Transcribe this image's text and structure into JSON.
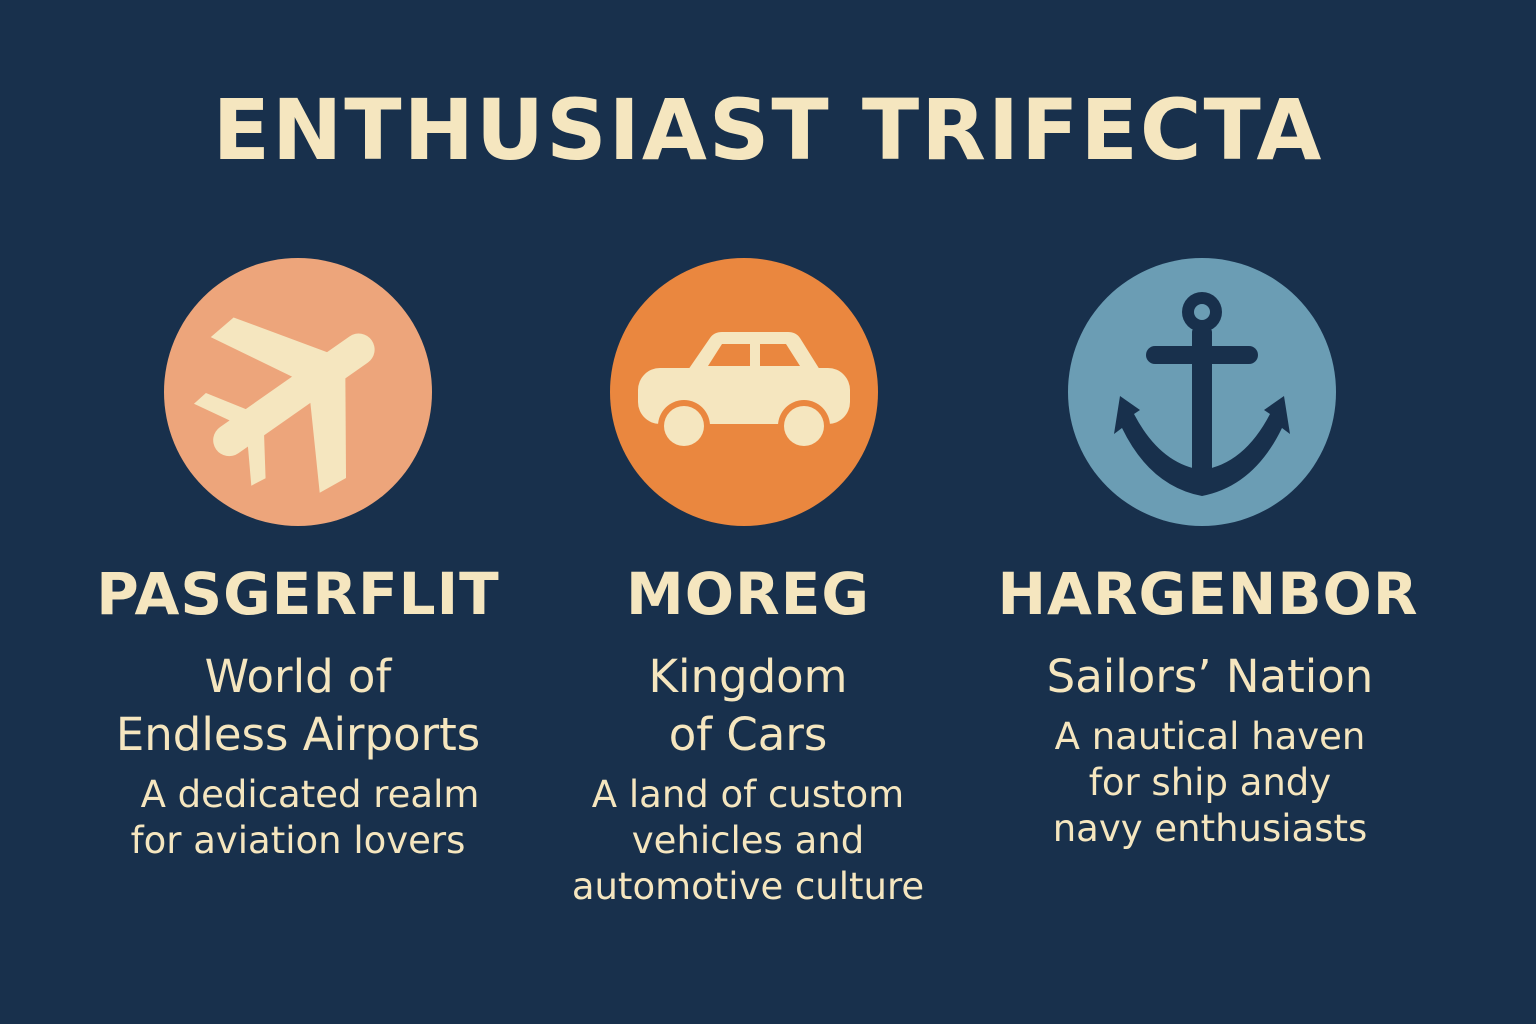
{
  "title": "ENTHUSIAST TRIFECTA",
  "colors": {
    "background": "#18304c",
    "text": "#f5e6bf",
    "icon_shape": "#f5e6bf",
    "anchor_shape": "#18304c"
  },
  "cards": [
    {
      "icon": "airplane-icon",
      "circle_color": "#eda57b",
      "name": "PASGERFLIT",
      "subtitle_lines": [
        "World of",
        "Endless Airports"
      ],
      "description_lines": [
        "A dedicated realm",
        "for aviation lovers"
      ]
    },
    {
      "icon": "car-icon",
      "circle_color": "#ea873f",
      "name": "MOREG",
      "subtitle_lines": [
        "Kingdom",
        "of Cars"
      ],
      "description_lines": [
        "A land of custom",
        "vehicles and",
        "automotive culture"
      ]
    },
    {
      "icon": "anchor-icon",
      "circle_color": "#6b9db4",
      "name": "HARGENBOR",
      "subtitle_lines": [
        "Sailors’ Nation"
      ],
      "description_lines": [
        "A nautical haven",
        "for ship andy",
        "navy enthusiasts"
      ]
    }
  ]
}
